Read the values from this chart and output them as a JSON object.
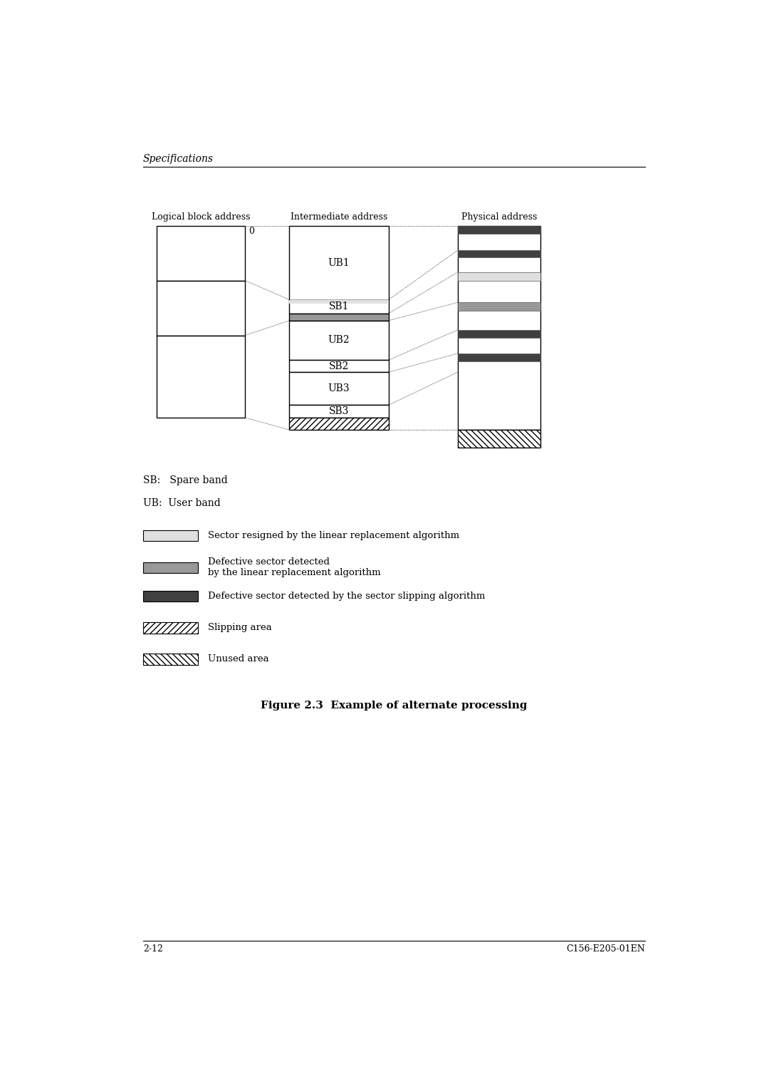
{
  "bg_color": "#ffffff",
  "page_width": 10.8,
  "page_height": 15.28,
  "header_text": "Specifications",
  "footer_left": "2-12",
  "footer_right": "C156-E205-01EN",
  "figure_title": "Figure 2.3  Example of alternate processing",
  "lba_label": "Logical block address",
  "ia_label": "Intermediate address",
  "pa_label": "Physical address",
  "sb_label": "SB:   Spare band",
  "ub_label": "UB:  User band",
  "legend_items": [
    {
      "color": "#e0e0e0",
      "hatch": "",
      "label": "Sector resigned by the linear replacement algorithm"
    },
    {
      "color": "#999999",
      "hatch": "",
      "label": "Defective sector detected\nby the linear replacement algorithm"
    },
    {
      "color": "#404040",
      "hatch": "",
      "label": "Defective sector detected by the sector slipping algorithm"
    },
    {
      "color": "#ffffff",
      "hatch": "////",
      "label": "Slipping area"
    },
    {
      "color": "#ffffff",
      "hatch": "\\\\\\\\",
      "label": "Unused area"
    }
  ]
}
